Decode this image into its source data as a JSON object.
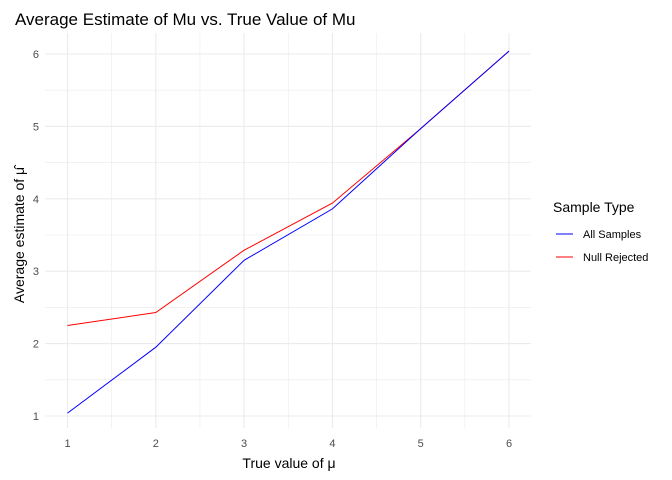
{
  "chart_data": {
    "type": "line",
    "title": "Average Estimate of Mu vs. True Value of Mu",
    "xlabel": "True value of",
    "xlabel_symbol": "μ",
    "ylabel": "Average estimate of",
    "ylabel_symbol": "μ̂",
    "xlim": [
      1,
      6
    ],
    "ylim": [
      1,
      6
    ],
    "x_ticks": [
      "1",
      "2",
      "3",
      "4",
      "5",
      "6"
    ],
    "y_ticks": [
      "1",
      "2",
      "3",
      "4",
      "5",
      "6"
    ],
    "grid": true,
    "legend": {
      "title": "Sample Type",
      "placement": "right",
      "entries": [
        "All Samples",
        "Null Rejected"
      ]
    },
    "x": [
      1,
      2,
      3,
      4,
      5,
      6
    ],
    "series": [
      {
        "name": "All Samples",
        "color": "#0000ff",
        "values": [
          1.04,
          1.95,
          3.15,
          3.86,
          4.97,
          6.04
        ]
      },
      {
        "name": "Null Rejected",
        "color": "#ff0000",
        "values": [
          2.25,
          2.43,
          3.29,
          3.94,
          4.97,
          6.04
        ]
      }
    ]
  }
}
